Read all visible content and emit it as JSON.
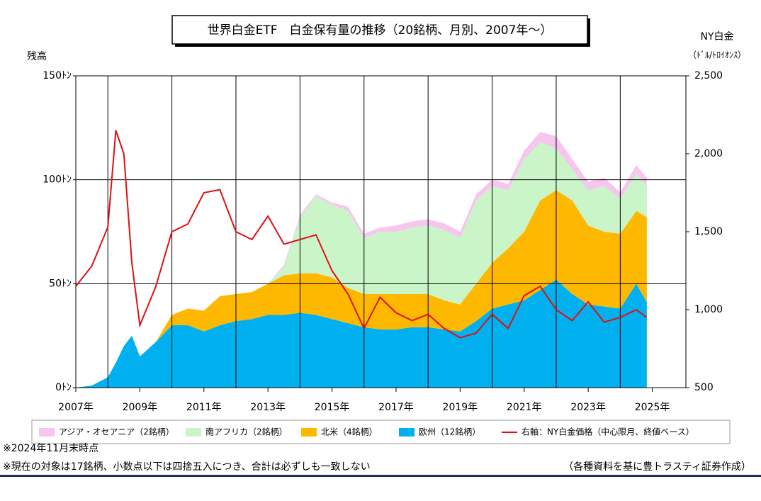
{
  "chart_data": {
    "type": "stacked-area-line",
    "title": "世界白金ETF　白金保有量の推移（20銘柄、月別、2007年～）",
    "y_label": "残高",
    "y2_label": "NY白金",
    "y2_unit": "（ﾄﾞﾙ/ﾄﾛｲｵﾝｽ）",
    "x": [
      2007.0,
      2007.5,
      2008.0,
      2008.25,
      2008.5,
      2008.75,
      2009.0,
      2009.5,
      2010.0,
      2010.5,
      2011.0,
      2011.5,
      2012.0,
      2012.5,
      2013.0,
      2013.5,
      2014.0,
      2014.5,
      2015.0,
      2015.5,
      2016.0,
      2016.5,
      2017.0,
      2017.5,
      2018.0,
      2018.5,
      2019.0,
      2019.5,
      2020.0,
      2020.5,
      2021.0,
      2021.5,
      2022.0,
      2022.5,
      2023.0,
      2023.5,
      2024.0,
      2024.5,
      2024.83
    ],
    "xlim": [
      2007,
      2026.05
    ],
    "xticks": [
      {
        "value": 2007,
        "label": "2007年"
      },
      {
        "value": 2009,
        "label": "2009年"
      },
      {
        "value": 2011,
        "label": "2011年"
      },
      {
        "value": 2013,
        "label": "2013年"
      },
      {
        "value": 2015,
        "label": "2015年"
      },
      {
        "value": 2017,
        "label": "2017年"
      },
      {
        "value": 2019,
        "label": "2019年"
      },
      {
        "value": 2021,
        "label": "2021年"
      },
      {
        "value": 2023,
        "label": "2023年"
      },
      {
        "value": 2025,
        "label": "2025年"
      }
    ],
    "xgrid": [
      2008,
      2010,
      2012,
      2014,
      2016,
      2018,
      2020,
      2022,
      2024
    ],
    "ylim": [
      0,
      150
    ],
    "yticks": [
      {
        "value": 0,
        "label": "0ﾄﾝ"
      },
      {
        "value": 50,
        "label": "50ﾄﾝ"
      },
      {
        "value": 100,
        "label": "100ﾄﾝ"
      },
      {
        "value": 150,
        "label": "150ﾄﾝ"
      }
    ],
    "y2lim": [
      500,
      2500
    ],
    "y2ticks": [
      {
        "value": 500,
        "label": "500"
      },
      {
        "value": 1000,
        "label": "1,000"
      },
      {
        "value": 1500,
        "label": "1,500"
      },
      {
        "value": 2000,
        "label": "2,000"
      },
      {
        "value": 2500,
        "label": "2,500"
      }
    ],
    "grid": true,
    "series": [
      {
        "name": "アジア・オセアニア（2銘柄）",
        "color": "#f7c6ef",
        "kind": "area",
        "values": [
          0,
          0,
          0,
          0,
          0,
          0,
          0,
          0,
          0,
          0,
          0,
          0,
          0,
          0,
          0,
          1,
          1,
          1,
          1,
          2,
          2,
          2,
          3,
          3,
          3,
          3,
          3,
          3,
          3,
          3,
          4,
          5,
          6,
          5,
          4,
          4,
          3,
          4,
          4
        ]
      },
      {
        "name": "南アフリカ（2銘柄）",
        "color": "#c9f5c9",
        "kind": "area",
        "values": [
          0,
          0,
          0,
          0,
          0,
          0,
          0,
          0,
          0,
          0,
          0,
          0,
          0,
          0,
          0,
          4,
          27,
          37,
          35,
          37,
          27,
          30,
          30,
          32,
          33,
          34,
          32,
          40,
          37,
          28,
          35,
          28,
          20,
          15,
          17,
          22,
          17,
          18,
          15
        ]
      },
      {
        "name": "北米（4銘柄）",
        "color": "#ffb800",
        "kind": "area",
        "values": [
          0,
          0,
          0,
          0,
          0,
          0,
          0,
          0,
          5,
          8,
          10,
          14,
          13,
          13,
          15,
          19,
          19,
          20,
          20,
          17,
          16,
          17,
          17,
          16,
          16,
          14,
          13,
          18,
          22,
          27,
          33,
          43,
          43,
          45,
          38,
          36,
          36,
          35,
          41
        ]
      },
      {
        "name": "欧州（12銘柄）",
        "color": "#00b0ef",
        "kind": "area",
        "values": [
          0,
          1,
          5,
          12,
          20,
          25,
          15,
          22,
          30,
          30,
          27,
          30,
          32,
          33,
          35,
          35,
          36,
          35,
          33,
          31,
          29,
          28,
          28,
          29,
          29,
          28,
          27,
          32,
          38,
          40,
          42,
          47,
          52,
          45,
          40,
          39,
          38,
          50,
          41
        ]
      },
      {
        "name": "右軸：NY白金価格（中心限月、終値ベース）",
        "color": "#e01010",
        "kind": "line",
        "axis": "y2",
        "values": [
          1150,
          1280,
          1530,
          2150,
          2000,
          1300,
          900,
          1150,
          1500,
          1550,
          1750,
          1770,
          1500,
          1450,
          1600,
          1420,
          1450,
          1480,
          1250,
          1100,
          880,
          1080,
          980,
          930,
          970,
          880,
          820,
          850,
          970,
          880,
          1090,
          1150,
          1000,
          930,
          1050,
          920,
          950,
          1000,
          950
        ]
      }
    ],
    "notes": [
      "※2024年11月末時点",
      "※現在の対象は17銘柄、小数点以下は四捨五入につき、合計は必ずしも一致しない"
    ],
    "source": "（各種資料を基に豊トラスティ証券作成）"
  }
}
